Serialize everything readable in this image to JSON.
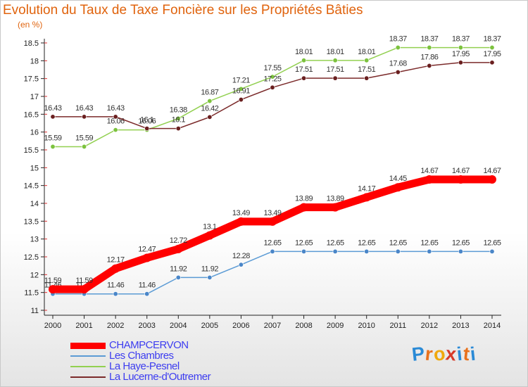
{
  "title": "Evolution du Taux de Taxe Foncière sur les Propriétés Bâties",
  "unit": "(en %)",
  "brand": {
    "letters": [
      "P",
      "r",
      "o",
      "x",
      "i",
      "t",
      "i"
    ],
    "colors": [
      "#2a8ad6",
      "#e8711c",
      "#f0a80c",
      "#d63a2a",
      "#2a8ad6",
      "#e8711c",
      "#2a8ad6"
    ]
  },
  "chart_data": {
    "type": "line",
    "categories": [
      "2000",
      "2001",
      "2002",
      "2003",
      "2004",
      "2005",
      "2006",
      "2007",
      "2008",
      "2009",
      "2010",
      "2011",
      "2012",
      "2013",
      "2014"
    ],
    "ylim": [
      11,
      18.5
    ],
    "yticks": [
      "11",
      "11.5",
      "12",
      "12.5",
      "13",
      "13.5",
      "14",
      "14.5",
      "15",
      "15.5",
      "16",
      "16.5",
      "17",
      "17.5",
      "18",
      "18.5"
    ],
    "series": [
      {
        "name": "Les Chambres",
        "color": "#5b9bd5",
        "marker": "#4a86c8",
        "values": [
          11.46,
          11.46,
          11.46,
          11.46,
          11.92,
          11.92,
          12.28,
          12.65,
          12.65,
          12.65,
          12.65,
          12.65,
          12.65,
          12.65,
          12.65
        ],
        "labels": [
          "11.46",
          "11.46",
          "11.46",
          "11.46",
          "11.92",
          "11.92",
          "12.28",
          "12.65",
          "12.65",
          "12.65",
          "12.65",
          "12.65",
          "12.65",
          "12.65",
          "12.65"
        ]
      },
      {
        "name": "La Haye-Pesnel",
        "color": "#92d050",
        "marker": "#7cc23e",
        "values": [
          15.59,
          15.59,
          16.06,
          16.06,
          16.38,
          16.87,
          17.21,
          17.55,
          18.01,
          18.01,
          18.01,
          18.37,
          18.37,
          18.37,
          18.37
        ],
        "labels": [
          "15.59",
          "15.59",
          "16.06",
          "16.06",
          "16.38",
          "16.87",
          "17.21",
          "17.55",
          "18.01",
          "18.01",
          "18.01",
          "18.37",
          "18.37",
          "18.37",
          "18.37"
        ]
      },
      {
        "name": "La Lucerne-d'Outremer",
        "color": "#7b2a2a",
        "marker": "#6a1f1f",
        "values": [
          16.43,
          16.43,
          16.43,
          16.1,
          16.1,
          16.42,
          16.91,
          17.25,
          17.51,
          17.51,
          17.51,
          17.68,
          17.86,
          17.95,
          17.95
        ],
        "labels": [
          "16.43",
          "16.43",
          "16.43",
          "16.1",
          "16.1",
          "16.42",
          "16.91",
          "17.25",
          "17.51",
          "17.51",
          "17.51",
          "17.68",
          "17.86",
          "17.95",
          "17.95"
        ]
      },
      {
        "name": "CHAMPCERVON",
        "color": "#ff0000",
        "marker": "#ff0000",
        "values": [
          11.59,
          11.59,
          12.17,
          12.47,
          12.72,
          13.1,
          13.49,
          13.49,
          13.89,
          13.89,
          14.17,
          14.45,
          14.67,
          14.67,
          14.67
        ],
        "labels": [
          "11.59",
          "11.59",
          "12.17",
          "12.47",
          "12.72",
          "13.1",
          "13.49",
          "13.49",
          "13.89",
          "13.89",
          "14.17",
          "14.45",
          "14.67",
          "14.67",
          "14.67"
        ]
      }
    ],
    "legend": [
      {
        "name": "CHAMPCERVON",
        "color": "#ff0000"
      },
      {
        "name": "Les Chambres",
        "color": "#5b9bd5"
      },
      {
        "name": "La Haye-Pesnel",
        "color": "#92d050"
      },
      {
        "name": "La Lucerne-d'Outremer",
        "color": "#7b2a2a"
      }
    ],
    "legend_position": "bottom-left",
    "grid": false
  }
}
